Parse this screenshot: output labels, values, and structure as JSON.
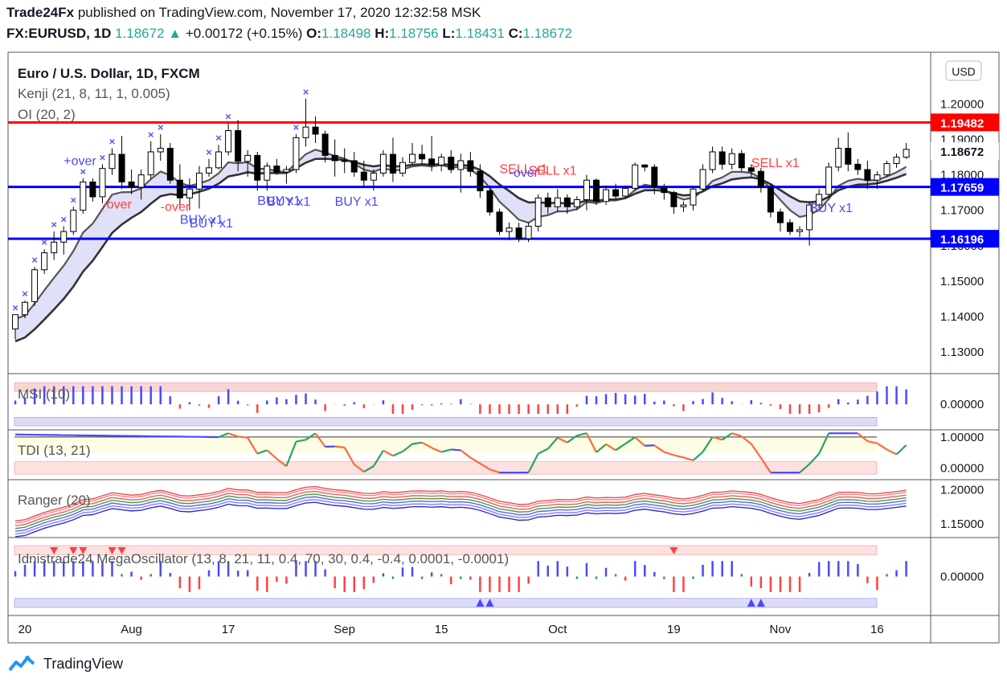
{
  "header": {
    "publisher": "Trade24Fx",
    "published_text": "published on TradingView.com, November 17, 2020 12:32:58 MSK",
    "symbol": "FX:EURUSD, 1D",
    "last": "1.18672",
    "change": "+0.00172 (+0.15%)",
    "o_label": "O:",
    "o": "1.18498",
    "h_label": "H:",
    "h": "1.18756",
    "l_label": "L:",
    "l": "1.18431",
    "c_label": "C:",
    "c": "1.18672"
  },
  "footer": {
    "brand": "TradingView"
  },
  "colors": {
    "up": "#ffffff",
    "down": "#000000",
    "level_red": "#ff0000",
    "level_blue": "#0000ff",
    "band_fill": "#d6d6f5",
    "band_fill_red": "#f8d6d6",
    "band_fill_green": "#d6f5d6",
    "text_dark": "#131722",
    "text_green": "#26a69a"
  },
  "chart_data": [
    {
      "type": "candlestick",
      "title": "Euro / U.S. Dollar, 1D, FXCM",
      "indicators": [
        "Kenji (21, 8, 11, 1, 0.005)",
        "OI (20, 2)"
      ],
      "currency_button": "USD",
      "x_ticks": [
        "20",
        "Aug",
        "17",
        "Sep",
        "15",
        "Oct",
        "19",
        "Nov",
        "16"
      ],
      "y_ticks": [
        "1.13000",
        "1.14000",
        "1.15000",
        "1.16000",
        "1.17000",
        "1.18000",
        "1.19000",
        "1.20000"
      ],
      "ylim": [
        1.125,
        1.2135
      ],
      "price_labels": [
        {
          "value": 1.19482,
          "text": "1.19482",
          "color": "#ff0000"
        },
        {
          "value": 1.18672,
          "text": "1.18672",
          "color": "#ffffff"
        },
        {
          "value": 1.17659,
          "text": "1.17659",
          "color": "#0000ff"
        },
        {
          "value": 1.16196,
          "text": "1.16196",
          "color": "#0000ff"
        }
      ],
      "horizontal_levels": [
        1.19482,
        1.17659,
        1.16196
      ],
      "annotations": [
        {
          "text": "+over",
          "color": "#4a4aff",
          "x_index": 5,
          "y": 1.1828
        },
        {
          "text": "-over",
          "color": "#ff4040",
          "x_index": 9,
          "y": 1.1705
        },
        {
          "text": "-over",
          "color": "#ff4040",
          "x_index": 15,
          "y": 1.1698
        },
        {
          "text": "BUY x1",
          "color": "#4a4aff",
          "x_index": 17,
          "y": 1.1662
        },
        {
          "text": "BUY x1",
          "color": "#4a4aff",
          "x_index": 18,
          "y": 1.1652
        },
        {
          "text": "BUY x1",
          "color": "#4a4aff",
          "x_index": 25,
          "y": 1.1715
        },
        {
          "text": "BUY x1",
          "color": "#4a4aff",
          "x_index": 26,
          "y": 1.1713
        },
        {
          "text": "BUY x1",
          "color": "#4a4aff",
          "x_index": 33,
          "y": 1.1713
        },
        {
          "text": "SELL x1",
          "color": "#ff4040",
          "x_index": 50,
          "y": 1.1805
        },
        {
          "text": "-over",
          "color": "#4a4aff",
          "x_index": 51,
          "y": 1.1795
        },
        {
          "text": "SELL x1",
          "color": "#ff4040",
          "x_index": 53,
          "y": 1.18
        },
        {
          "text": "SELL x1",
          "color": "#ff4040",
          "x_index": 76,
          "y": 1.1822
        },
        {
          "text": "BUY x1",
          "color": "#4a4aff",
          "x_index": 82,
          "y": 1.1695
        }
      ],
      "candles": [
        {
          "o": 1.1365,
          "h": 1.1405,
          "l": 1.1335,
          "c": 1.1405
        },
        {
          "o": 1.1405,
          "h": 1.1445,
          "l": 1.1395,
          "c": 1.144
        },
        {
          "o": 1.1442,
          "h": 1.154,
          "l": 1.143,
          "c": 1.1532
        },
        {
          "o": 1.1532,
          "h": 1.159,
          "l": 1.152,
          "c": 1.158
        },
        {
          "o": 1.158,
          "h": 1.164,
          "l": 1.156,
          "c": 1.161
        },
        {
          "o": 1.161,
          "h": 1.1655,
          "l": 1.1575,
          "c": 1.164
        },
        {
          "o": 1.164,
          "h": 1.171,
          "l": 1.163,
          "c": 1.17
        },
        {
          "o": 1.17,
          "h": 1.179,
          "l": 1.169,
          "c": 1.178
        },
        {
          "o": 1.178,
          "h": 1.179,
          "l": 1.1725,
          "c": 1.1738
        },
        {
          "o": 1.1738,
          "h": 1.183,
          "l": 1.172,
          "c": 1.1818
        },
        {
          "o": 1.1818,
          "h": 1.1875,
          "l": 1.18,
          "c": 1.1858
        },
        {
          "o": 1.1858,
          "h": 1.191,
          "l": 1.176,
          "c": 1.178
        },
        {
          "o": 1.178,
          "h": 1.1815,
          "l": 1.1745,
          "c": 1.1765
        },
        {
          "o": 1.1765,
          "h": 1.1815,
          "l": 1.173,
          "c": 1.18
        },
        {
          "o": 1.18,
          "h": 1.1895,
          "l": 1.179,
          "c": 1.1865
        },
        {
          "o": 1.1865,
          "h": 1.1915,
          "l": 1.184,
          "c": 1.1875
        },
        {
          "o": 1.1875,
          "h": 1.189,
          "l": 1.1775,
          "c": 1.1785
        },
        {
          "o": 1.1785,
          "h": 1.183,
          "l": 1.1705,
          "c": 1.1735
        },
        {
          "o": 1.1735,
          "h": 1.179,
          "l": 1.17,
          "c": 1.176
        },
        {
          "o": 1.176,
          "h": 1.1825,
          "l": 1.1705,
          "c": 1.1805
        },
        {
          "o": 1.1805,
          "h": 1.1845,
          "l": 1.1795,
          "c": 1.182
        },
        {
          "o": 1.182,
          "h": 1.1885,
          "l": 1.1815,
          "c": 1.1865
        },
        {
          "o": 1.1865,
          "h": 1.1945,
          "l": 1.1855,
          "c": 1.1925
        },
        {
          "o": 1.1925,
          "h": 1.1955,
          "l": 1.181,
          "c": 1.1838
        },
        {
          "o": 1.1838,
          "h": 1.187,
          "l": 1.1795,
          "c": 1.1855
        },
        {
          "o": 1.1855,
          "h": 1.1865,
          "l": 1.1755,
          "c": 1.1785
        },
        {
          "o": 1.1785,
          "h": 1.1835,
          "l": 1.1755,
          "c": 1.1825
        },
        {
          "o": 1.1825,
          "h": 1.1845,
          "l": 1.18,
          "c": 1.1808
        },
        {
          "o": 1.1808,
          "h": 1.1825,
          "l": 1.1775,
          "c": 1.1815
        },
        {
          "o": 1.1815,
          "h": 1.1915,
          "l": 1.1805,
          "c": 1.1905
        },
        {
          "o": 1.1905,
          "h": 1.2015,
          "l": 1.188,
          "c": 1.1935
        },
        {
          "o": 1.1935,
          "h": 1.1965,
          "l": 1.189,
          "c": 1.1915
        },
        {
          "o": 1.1915,
          "h": 1.1925,
          "l": 1.1835,
          "c": 1.1855
        },
        {
          "o": 1.1855,
          "h": 1.19,
          "l": 1.1795,
          "c": 1.184
        },
        {
          "o": 1.184,
          "h": 1.1875,
          "l": 1.1805,
          "c": 1.184
        },
        {
          "o": 1.184,
          "h": 1.1865,
          "l": 1.1795,
          "c": 1.1808
        },
        {
          "o": 1.1808,
          "h": 1.184,
          "l": 1.1765,
          "c": 1.1785
        },
        {
          "o": 1.1785,
          "h": 1.1815,
          "l": 1.1755,
          "c": 1.1805
        },
        {
          "o": 1.1805,
          "h": 1.187,
          "l": 1.1795,
          "c": 1.1858
        },
        {
          "o": 1.1858,
          "h": 1.1905,
          "l": 1.178,
          "c": 1.1805
        },
        {
          "o": 1.1805,
          "h": 1.185,
          "l": 1.1795,
          "c": 1.1835
        },
        {
          "o": 1.1835,
          "h": 1.189,
          "l": 1.183,
          "c": 1.1858
        },
        {
          "o": 1.1858,
          "h": 1.1885,
          "l": 1.183,
          "c": 1.1845
        },
        {
          "o": 1.1845,
          "h": 1.191,
          "l": 1.181,
          "c": 1.1828
        },
        {
          "o": 1.1828,
          "h": 1.186,
          "l": 1.181,
          "c": 1.185
        },
        {
          "o": 1.185,
          "h": 1.187,
          "l": 1.1805,
          "c": 1.1815
        },
        {
          "o": 1.1815,
          "h": 1.186,
          "l": 1.175,
          "c": 1.184
        },
        {
          "o": 1.184,
          "h": 1.1865,
          "l": 1.1795,
          "c": 1.181
        },
        {
          "o": 1.181,
          "h": 1.183,
          "l": 1.1735,
          "c": 1.1755
        },
        {
          "o": 1.1755,
          "h": 1.177,
          "l": 1.1685,
          "c": 1.1695
        },
        {
          "o": 1.1695,
          "h": 1.1705,
          "l": 1.163,
          "c": 1.164
        },
        {
          "o": 1.164,
          "h": 1.1665,
          "l": 1.1615,
          "c": 1.165
        },
        {
          "o": 1.165,
          "h": 1.1665,
          "l": 1.161,
          "c": 1.162
        },
        {
          "o": 1.162,
          "h": 1.1665,
          "l": 1.161,
          "c": 1.1655
        },
        {
          "o": 1.1655,
          "h": 1.1745,
          "l": 1.164,
          "c": 1.1735
        },
        {
          "o": 1.1735,
          "h": 1.175,
          "l": 1.169,
          "c": 1.171
        },
        {
          "o": 1.171,
          "h": 1.176,
          "l": 1.1695,
          "c": 1.1735
        },
        {
          "o": 1.1735,
          "h": 1.1745,
          "l": 1.169,
          "c": 1.171
        },
        {
          "o": 1.171,
          "h": 1.174,
          "l": 1.17,
          "c": 1.173
        },
        {
          "o": 1.173,
          "h": 1.18,
          "l": 1.17,
          "c": 1.1785
        },
        {
          "o": 1.1785,
          "h": 1.179,
          "l": 1.1715,
          "c": 1.1725
        },
        {
          "o": 1.1725,
          "h": 1.177,
          "l": 1.1715,
          "c": 1.1758
        },
        {
          "o": 1.1758,
          "h": 1.1775,
          "l": 1.173,
          "c": 1.174
        },
        {
          "o": 1.174,
          "h": 1.177,
          "l": 1.1735,
          "c": 1.1762
        },
        {
          "o": 1.1762,
          "h": 1.1835,
          "l": 1.1755,
          "c": 1.1828
        },
        {
          "o": 1.1828,
          "h": 1.183,
          "l": 1.181,
          "c": 1.1822
        },
        {
          "o": 1.1822,
          "h": 1.183,
          "l": 1.1745,
          "c": 1.1765
        },
        {
          "o": 1.1765,
          "h": 1.1775,
          "l": 1.173,
          "c": 1.175
        },
        {
          "o": 1.175,
          "h": 1.1755,
          "l": 1.169,
          "c": 1.171
        },
        {
          "o": 1.171,
          "h": 1.1725,
          "l": 1.1695,
          "c": 1.1715
        },
        {
          "o": 1.1715,
          "h": 1.177,
          "l": 1.17,
          "c": 1.176
        },
        {
          "o": 1.176,
          "h": 1.183,
          "l": 1.1755,
          "c": 1.1815
        },
        {
          "o": 1.1815,
          "h": 1.188,
          "l": 1.1805,
          "c": 1.1865
        },
        {
          "o": 1.1865,
          "h": 1.188,
          "l": 1.1815,
          "c": 1.183
        },
        {
          "o": 1.183,
          "h": 1.1875,
          "l": 1.1815,
          "c": 1.186
        },
        {
          "o": 1.186,
          "h": 1.187,
          "l": 1.181,
          "c": 1.182
        },
        {
          "o": 1.182,
          "h": 1.183,
          "l": 1.1795,
          "c": 1.181
        },
        {
          "o": 1.181,
          "h": 1.182,
          "l": 1.175,
          "c": 1.1765
        },
        {
          "o": 1.1765,
          "h": 1.1775,
          "l": 1.168,
          "c": 1.1695
        },
        {
          "o": 1.1695,
          "h": 1.1705,
          "l": 1.164,
          "c": 1.1665
        },
        {
          "o": 1.1665,
          "h": 1.1675,
          "l": 1.163,
          "c": 1.164
        },
        {
          "o": 1.164,
          "h": 1.1655,
          "l": 1.1625,
          "c": 1.1645
        },
        {
          "o": 1.1645,
          "h": 1.1725,
          "l": 1.16,
          "c": 1.1715
        },
        {
          "o": 1.1715,
          "h": 1.176,
          "l": 1.1705,
          "c": 1.1745
        },
        {
          "o": 1.1745,
          "h": 1.1835,
          "l": 1.1735,
          "c": 1.1822
        },
        {
          "o": 1.1822,
          "h": 1.1905,
          "l": 1.181,
          "c": 1.1875
        },
        {
          "o": 1.1875,
          "h": 1.192,
          "l": 1.181,
          "c": 1.183
        },
        {
          "o": 1.183,
          "h": 1.1845,
          "l": 1.18,
          "c": 1.1815
        },
        {
          "o": 1.1815,
          "h": 1.184,
          "l": 1.176,
          "c": 1.1785
        },
        {
          "o": 1.1785,
          "h": 1.181,
          "l": 1.176,
          "c": 1.18
        },
        {
          "o": 1.18,
          "h": 1.184,
          "l": 1.1795,
          "c": 1.1832
        },
        {
          "o": 1.1832,
          "h": 1.186,
          "l": 1.182,
          "c": 1.185
        },
        {
          "o": 1.185,
          "h": 1.189,
          "l": 1.1845,
          "c": 1.1872
        }
      ]
    },
    {
      "type": "bar",
      "title": "MSI (10)",
      "y_ticks": [
        "0.00000"
      ],
      "ylim": [
        -1.2,
        1.5
      ],
      "bands": {
        "top": [
          0.75,
          1.25
        ],
        "bottom": [
          -1.25,
          -0.75
        ]
      }
    },
    {
      "type": "line",
      "title": "TDI (13, 21)",
      "y_ticks": [
        "1.00000",
        "0.00000"
      ],
      "ylim": [
        -0.25,
        1.1
      ]
    },
    {
      "type": "line",
      "title": "Ranger (20)",
      "y_ticks": [
        "1.20000",
        "1.15000"
      ],
      "ylim": [
        1.135,
        1.21
      ]
    },
    {
      "type": "bar",
      "title": "Idnistrade24 MegaOscillator (13, 8, 21, 11, 0.4, 70, 30, 0.4, -0.4, 0.0001, -0.0001)",
      "y_ticks": [
        "0.00000"
      ],
      "ylim": [
        -1.2,
        1.2
      ]
    }
  ]
}
